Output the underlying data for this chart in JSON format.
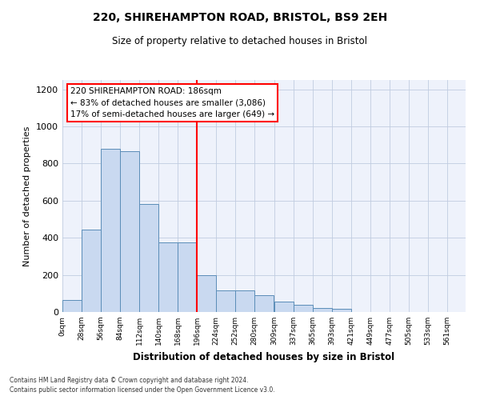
{
  "title": "220, SHIREHAMPTON ROAD, BRISTOL, BS9 2EH",
  "subtitle": "Size of property relative to detached houses in Bristol",
  "xlabel": "Distribution of detached houses by size in Bristol",
  "ylabel": "Number of detached properties",
  "bin_labels": [
    "0sqm",
    "28sqm",
    "56sqm",
    "84sqm",
    "112sqm",
    "140sqm",
    "168sqm",
    "196sqm",
    "224sqm",
    "252sqm",
    "280sqm",
    "309sqm",
    "337sqm",
    "365sqm",
    "393sqm",
    "421sqm",
    "449sqm",
    "477sqm",
    "505sqm",
    "533sqm",
    "561sqm"
  ],
  "bar_values": [
    65,
    445,
    880,
    865,
    580,
    375,
    375,
    200,
    115,
    115,
    90,
    55,
    40,
    20,
    18,
    0,
    0,
    0,
    0,
    0,
    0
  ],
  "bar_color": "#c9d9f0",
  "bar_edge_color": "#5b8db8",
  "vline_color": "red",
  "ylim": [
    0,
    1250
  ],
  "yticks": [
    0,
    200,
    400,
    600,
    800,
    1000,
    1200
  ],
  "annotation_title": "220 SHIREHAMPTON ROAD: 186sqm",
  "annotation_line1": "← 83% of detached houses are smaller (3,086)",
  "annotation_line2": "17% of semi-detached houses are larger (649) →",
  "annotation_box_color": "#ffffff",
  "annotation_box_edge": "red",
  "footer_line1": "Contains HM Land Registry data © Crown copyright and database right 2024.",
  "footer_line2": "Contains public sector information licensed under the Open Government Licence v3.0.",
  "bg_color": "#eef2fb",
  "grid_color": "#c0cce0"
}
